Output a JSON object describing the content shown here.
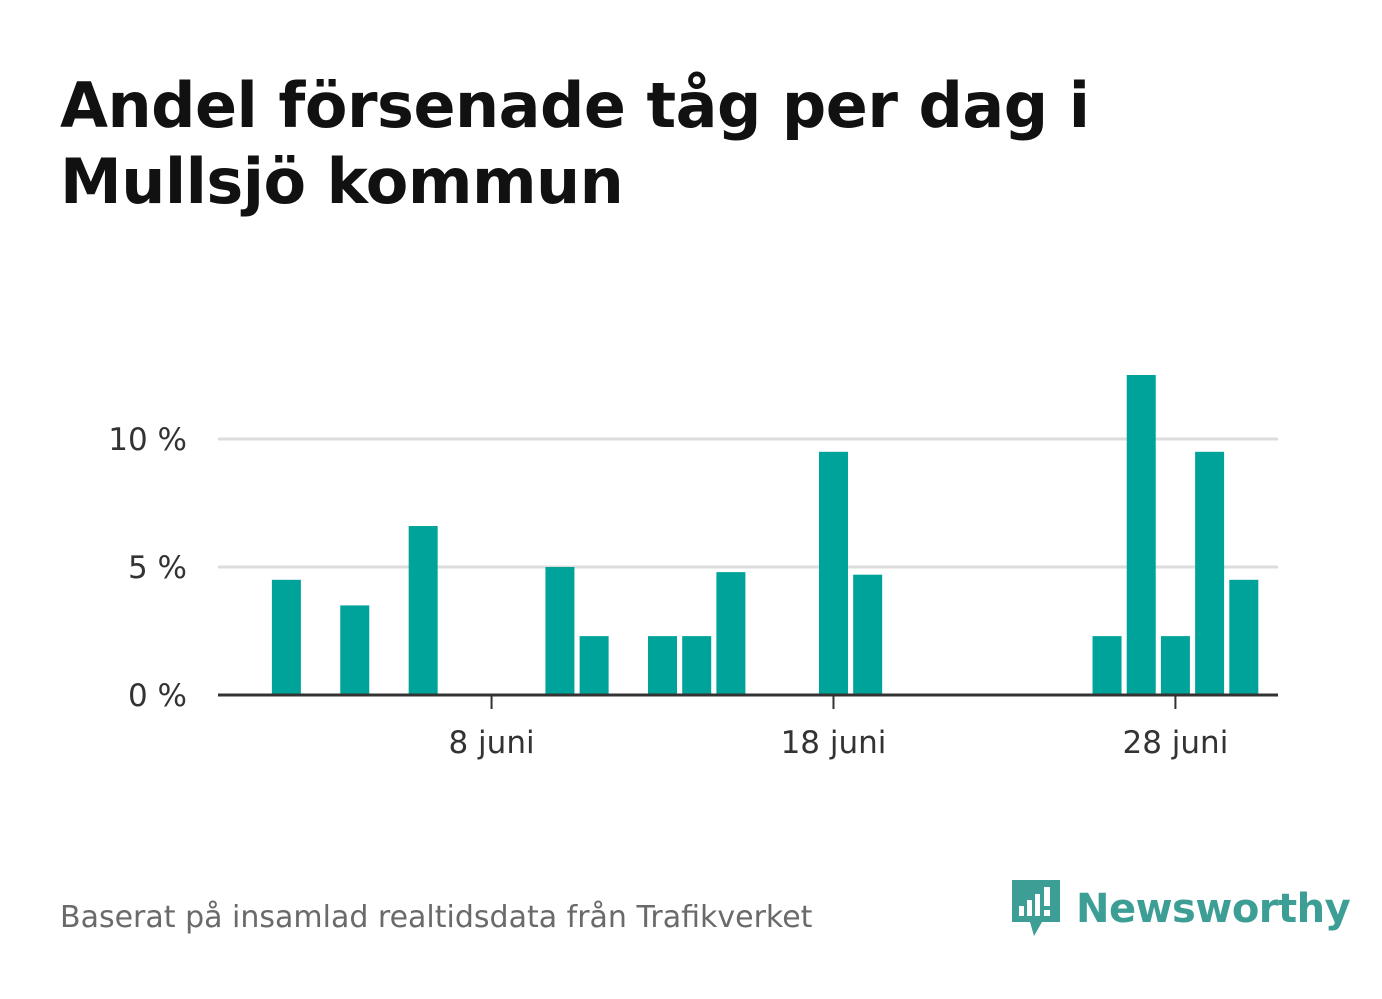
{
  "title": "Andel försenade tåg per dag i Mullsjö kommun",
  "source": "Baserat på insamlad realtidsdata från Trafikverket",
  "brand": {
    "name": "Newsworthy",
    "icon": "newsworthy-logo-icon",
    "color": "#3d9e96"
  },
  "colors": {
    "bar": "#00a39a",
    "grid": "#dddddd",
    "axis": "#333333",
    "text": "#333333"
  },
  "chart_data": {
    "type": "bar",
    "title": "Andel försenade tåg per dag i Mullsjö kommun",
    "xlabel": "",
    "ylabel": "",
    "x_domain": [
      0,
      31
    ],
    "ylim": [
      0,
      13
    ],
    "y_ticks": [
      {
        "value": 0,
        "label": "0 %"
      },
      {
        "value": 5,
        "label": "5 %"
      },
      {
        "value": 10,
        "label": "10 %"
      }
    ],
    "x_ticks": [
      {
        "day": 8,
        "label": "8 juni"
      },
      {
        "day": 18,
        "label": "18 juni"
      },
      {
        "day": 28,
        "label": "28 juni"
      }
    ],
    "categories": [
      1,
      2,
      3,
      4,
      5,
      6,
      7,
      8,
      9,
      10,
      11,
      12,
      13,
      14,
      15,
      16,
      17,
      18,
      19,
      20,
      21,
      22,
      23,
      24,
      25,
      26,
      27,
      28,
      29,
      30
    ],
    "values": [
      0,
      4.5,
      0,
      3.5,
      0,
      6.6,
      0,
      0,
      0,
      5.0,
      2.3,
      0,
      2.3,
      2.3,
      4.8,
      0,
      0,
      9.5,
      4.7,
      0,
      0,
      0,
      0,
      0,
      0,
      2.3,
      12.5,
      2.3,
      9.5,
      4.5
    ],
    "grid": true,
    "legend": "none"
  }
}
